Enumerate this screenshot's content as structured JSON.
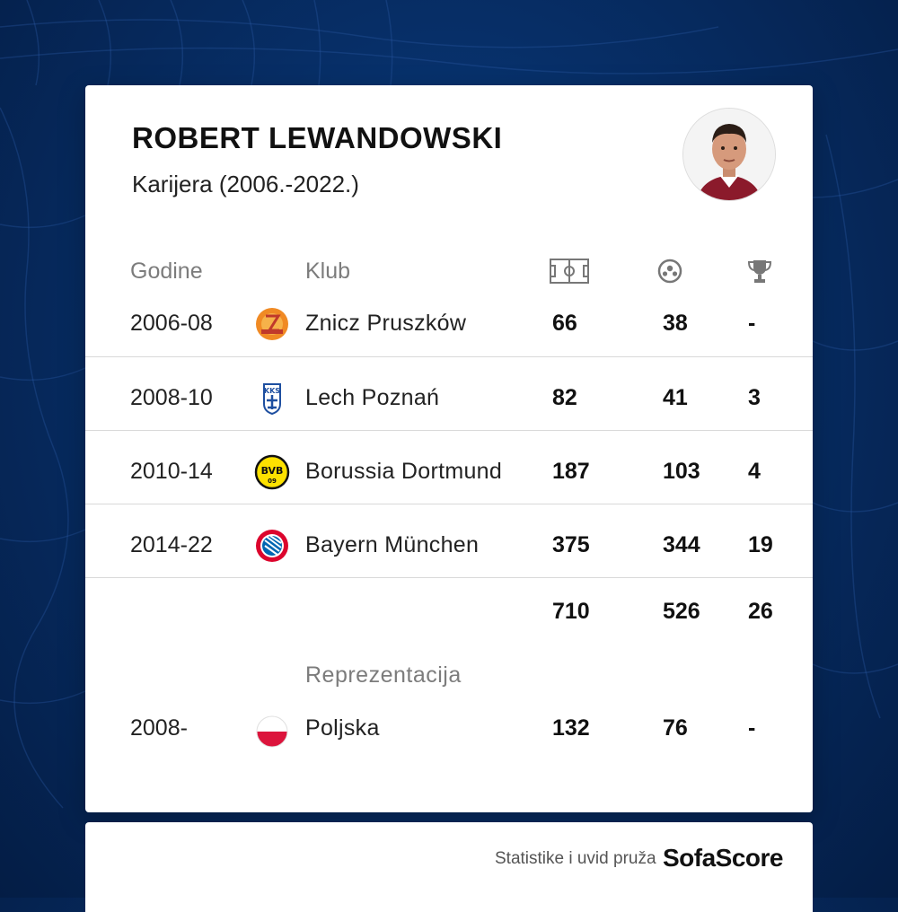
{
  "player": {
    "name": "ROBERT LEWANDOWSKI",
    "subtitle": "Karijera (2006.-2022.)"
  },
  "headers": {
    "years": "Godine",
    "club": "Klub",
    "appearances_icon": "pitch-icon",
    "goals_icon": "ball-icon",
    "trophies_icon": "trophy-icon"
  },
  "clubs": [
    {
      "years": "2006-08",
      "club": "Znicz Pruszków",
      "apps": "66",
      "goals": "38",
      "trophies": "-",
      "logo": "znicz-logo"
    },
    {
      "years": "2008-10",
      "club": "Lech Poznań",
      "apps": "82",
      "goals": "41",
      "trophies": "3",
      "logo": "lech-logo"
    },
    {
      "years": "2010-14",
      "club": "Borussia Dortmund",
      "apps": "187",
      "goals": "103",
      "trophies": "4",
      "logo": "bvb-logo"
    },
    {
      "years": "2014-22",
      "club": "Bayern München",
      "apps": "375",
      "goals": "344",
      "trophies": "19",
      "logo": "bayern-logo"
    }
  ],
  "totals": {
    "apps": "710",
    "goals": "526",
    "trophies": "26"
  },
  "national": {
    "section_label": "Reprezentacija",
    "years": "2008-",
    "team": "Poljska",
    "apps": "132",
    "goals": "76",
    "trophies": "-",
    "logo": "poland-flag"
  },
  "footer": {
    "text": "Statistike i uvid pruža",
    "brand": "SofaScore"
  },
  "colors": {
    "background": "#072e66",
    "card": "#ffffff",
    "bvb": "#fde100",
    "bayern": "#dc052d",
    "lech": "#1e4fa0",
    "poland_red": "#dc143c"
  }
}
